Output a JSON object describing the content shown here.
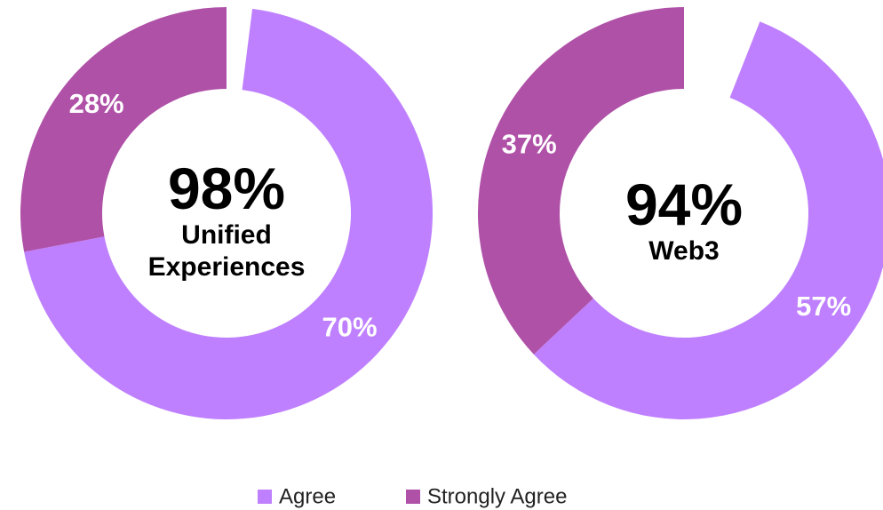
{
  "chart_data": [
    {
      "type": "donut",
      "categories": [
        "Agree",
        "Strongly Agree"
      ],
      "values": [
        70,
        28
      ],
      "value_labels": [
        "70%",
        "28%"
      ],
      "colors": [
        "#bf80ff",
        "#b051a8"
      ],
      "center_value": "98%",
      "center_label": "Unified Experiences"
    },
    {
      "type": "donut",
      "categories": [
        "Agree",
        "Strongly Agree"
      ],
      "values": [
        57,
        37
      ],
      "value_labels": [
        "57%",
        "37%"
      ],
      "colors": [
        "#bf80ff",
        "#b051a8"
      ],
      "center_value": "94%",
      "center_label": "Web3"
    }
  ]
}
